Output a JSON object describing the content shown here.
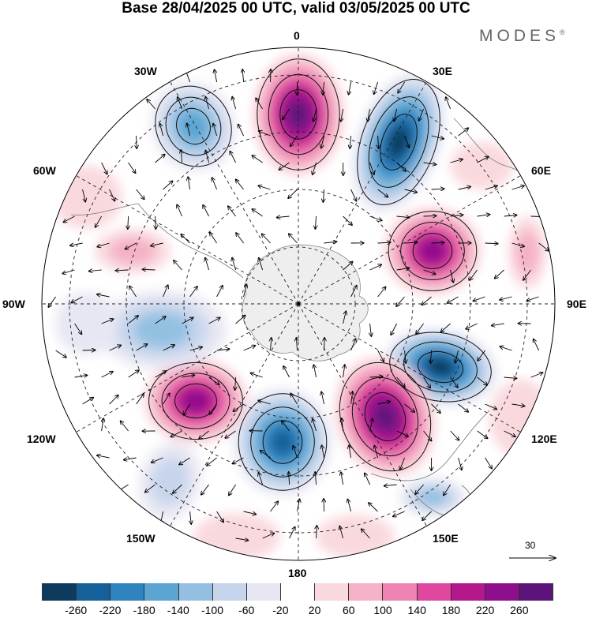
{
  "title": "Base 28/04/2025 00 UTC, valid 03/05/2025 00 UTC",
  "brand": "MODES",
  "brand_mark": "®",
  "longitude_labels": {
    "lon_0": "0",
    "lon_30e": "30E",
    "lon_60e": "60E",
    "lon_90e": "90E",
    "lon_120e": "120E",
    "lon_150e": "150E",
    "lon_180": "180",
    "lon_150w": "150W",
    "lon_120w": "120W",
    "lon_90w": "90W",
    "lon_60w": "60W",
    "lon_30w": "30W"
  },
  "reference_vector": {
    "value": "30"
  },
  "colorbar": {
    "colors": [
      "#0d3b5c",
      "#16609a",
      "#2f84c0",
      "#5ca5d3",
      "#93c0e1",
      "#c6d5ec",
      "#e7e7f3",
      "#ffffff",
      "#f9d9de",
      "#f5b1c5",
      "#ee84b4",
      "#e0489f",
      "#b4188b",
      "#8e0f8e",
      "#5b157a"
    ],
    "labels": [
      "-260",
      "-220",
      "-180",
      "-140",
      "-100",
      "-60",
      "-20",
      "20",
      "60",
      "100",
      "140",
      "180",
      "220",
      "260"
    ]
  },
  "legend_colors": {
    "negative_strong": "#0d3b5c",
    "positive_strong": "#7a0f84",
    "land": "#eeeeee"
  }
}
